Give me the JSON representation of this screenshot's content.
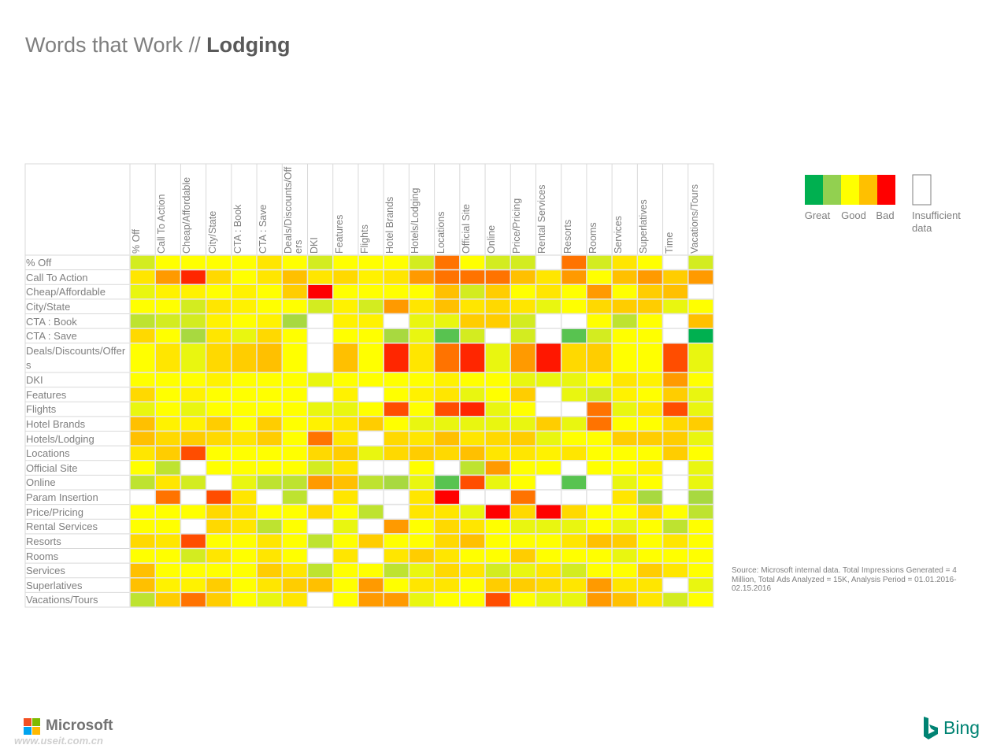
{
  "header": {
    "title": "Words that Work //",
    "title_emphasis": "Lodging"
  },
  "chart_data": {
    "type": "heatmap",
    "columns": [
      "% Off",
      "Call To Action",
      "Cheap/Affordable",
      "City/State",
      "CTA : Book",
      "CTA : Save",
      "Deals/Discounts/Offers",
      "DKI",
      "Features",
      "Flights",
      "Hotel Brands",
      "Hotels/Lodging",
      "Locations",
      "Official Site",
      "Online",
      "Price/Pricing",
      "Rental Services",
      "Resorts",
      "Rooms",
      "Services",
      "Superlatives",
      "Time",
      "Vacations/Tours"
    ],
    "rows": [
      "% Off",
      "Call To Action",
      "Cheap/Affordable",
      "City/State",
      "CTA : Book",
      "CTA : Save",
      "Deals/Discounts/Offers",
      "DKI",
      "Features",
      "Flights",
      "Hotel Brands",
      "Hotels/Lodging",
      "Locations",
      "Official Site",
      "Online",
      "Param Insertion",
      "Price/Pricing",
      "Rental Services",
      "Resorts",
      "Rooms",
      "Services",
      "Superlatives",
      "Vacations/Tours"
    ],
    "values": [
      [
        4,
        5,
        5,
        5,
        5,
        6,
        5,
        4,
        5,
        5,
        5,
        4,
        8.5,
        5,
        4,
        4,
        null,
        8.5,
        4,
        6,
        5,
        null,
        4
      ],
      [
        6,
        8,
        9.5,
        6.5,
        5,
        6,
        7.5,
        6,
        6.5,
        5.5,
        6,
        8,
        8.5,
        8.5,
        8.5,
        7.5,
        6,
        8,
        5,
        7.5,
        8,
        7,
        8
      ],
      [
        4.5,
        5.5,
        5.5,
        5,
        5.5,
        5,
        7,
        10,
        5,
        5,
        5,
        5,
        7.5,
        4,
        7,
        5,
        6,
        5,
        8,
        5,
        7,
        7.5,
        null
      ],
      [
        5,
        5,
        4,
        6,
        5.5,
        5,
        5,
        4,
        5.5,
        4,
        8,
        6,
        7.5,
        6,
        6.5,
        6,
        4.5,
        5,
        6.5,
        7,
        7,
        4.5,
        5
      ],
      [
        3.5,
        4,
        4,
        5.5,
        5,
        5.5,
        3,
        null,
        5.5,
        5.5,
        null,
        4.5,
        4.5,
        7,
        7,
        4,
        null,
        null,
        5,
        3.5,
        5,
        null,
        7.5
      ],
      [
        6.5,
        5,
        3,
        6,
        4.5,
        6.5,
        5,
        null,
        5,
        5,
        3,
        4.5,
        1.5,
        4,
        null,
        4,
        null,
        1.5,
        4,
        5,
        5,
        null,
        0
      ],
      [
        5,
        6,
        4.5,
        6.5,
        7,
        7.5,
        5,
        null,
        7.5,
        5,
        9.5,
        6,
        8.5,
        9.5,
        4.5,
        8,
        9.7,
        6.5,
        7,
        5,
        5,
        9,
        4.5
      ],
      [
        5,
        5,
        5,
        5.5,
        5,
        5,
        5,
        4.5,
        5,
        5,
        5,
        5,
        5.5,
        5,
        5,
        4.5,
        4.5,
        4.5,
        5,
        6,
        5.5,
        8,
        5
      ],
      [
        6.5,
        5,
        5.5,
        5,
        5,
        5,
        5,
        null,
        5.5,
        null,
        5,
        5.5,
        6,
        4.5,
        5,
        7,
        null,
        4.5,
        4,
        5.5,
        5,
        7,
        4.5
      ],
      [
        4.5,
        5,
        4.5,
        5,
        5,
        5,
        5,
        4.5,
        4.5,
        5,
        9,
        5,
        9,
        9.5,
        4.5,
        5,
        null,
        null,
        8.5,
        4.5,
        6,
        9,
        4.5
      ],
      [
        7.5,
        5.5,
        5.5,
        7,
        5,
        7,
        5,
        5.5,
        6,
        7,
        5,
        4.5,
        4.5,
        4.5,
        4.5,
        4.5,
        7,
        4.5,
        8.5,
        5,
        5,
        6.5,
        7
      ],
      [
        7.5,
        6.5,
        7,
        6.5,
        6,
        7,
        5,
        8.5,
        6,
        null,
        6.5,
        6,
        7.5,
        6,
        6.5,
        7,
        4.5,
        5,
        5,
        7,
        7,
        7,
        4.5
      ],
      [
        6,
        7,
        9,
        5,
        5,
        5,
        5,
        6.5,
        7,
        4.5,
        6.5,
        7,
        6.5,
        7.5,
        6,
        6,
        5.5,
        6,
        5,
        5,
        5,
        7,
        5
      ],
      [
        5,
        3.5,
        null,
        5,
        5,
        5,
        5,
        4,
        6,
        null,
        null,
        5,
        null,
        3.5,
        8,
        5,
        5,
        null,
        5,
        5,
        5.5,
        null,
        4.5
      ],
      [
        3.5,
        6,
        4,
        null,
        4.5,
        3.5,
        3.5,
        8,
        7.5,
        3.5,
        3,
        4.5,
        1.5,
        9,
        4.5,
        5,
        null,
        1.5,
        null,
        4.5,
        5,
        null,
        4.5
      ],
      [
        null,
        8.5,
        null,
        9,
        6,
        null,
        3.5,
        null,
        6,
        null,
        null,
        6,
        10,
        null,
        null,
        8.5,
        null,
        null,
        null,
        6,
        3,
        null,
        3
      ],
      [
        5,
        5,
        5,
        6.5,
        6,
        5,
        5,
        6.5,
        5,
        3.5,
        null,
        6,
        6,
        4.5,
        10,
        6.5,
        10,
        6.5,
        5,
        5,
        6.5,
        5,
        3.5
      ],
      [
        5,
        5,
        null,
        6.5,
        6,
        3.5,
        5,
        null,
        4.5,
        null,
        8,
        5,
        6.5,
        6,
        5,
        4.5,
        4.5,
        4.5,
        5,
        4.5,
        5,
        3.5,
        5
      ],
      [
        6.5,
        6,
        9,
        5,
        5,
        6,
        5,
        3.5,
        5,
        7,
        5,
        5,
        6.5,
        7.5,
        5,
        5,
        5,
        6,
        7.5,
        7,
        5,
        6,
        5
      ],
      [
        5,
        5,
        4,
        6,
        5,
        6,
        5,
        null,
        6,
        null,
        6,
        7,
        6,
        5,
        5,
        7,
        5,
        5,
        5,
        4.5,
        5,
        5,
        5
      ],
      [
        7.5,
        5,
        5,
        5,
        5,
        7,
        6,
        3.5,
        5,
        5,
        3.5,
        4.5,
        6.5,
        6,
        4,
        4.5,
        6,
        4,
        5,
        5,
        7,
        6,
        5
      ],
      [
        7.5,
        5.5,
        5.5,
        7,
        5,
        6,
        7,
        7.5,
        5,
        8,
        5,
        6,
        6,
        5,
        7,
        7,
        6.5,
        6,
        8,
        6,
        6,
        null,
        4.5
      ],
      [
        3.5,
        7,
        8.5,
        7,
        5,
        4.5,
        6,
        null,
        5,
        8,
        8,
        4.5,
        5,
        5,
        9,
        5,
        4.5,
        4.5,
        8,
        7.5,
        6,
        4,
        5
      ]
    ],
    "color_scale": [
      {
        "value": 0,
        "color": "#00b050"
      },
      {
        "value": 2.5,
        "color": "#92d050"
      },
      {
        "value": 5,
        "color": "#ffff00"
      },
      {
        "value": 7.5,
        "color": "#ffc000"
      },
      {
        "value": 10,
        "color": "#ff0000"
      }
    ],
    "legend": {
      "labels": [
        "Great",
        "Good",
        "Bad"
      ],
      "insufficient": "Insufficient data"
    },
    "source": "Source: Microsoft internal data. Total Impressions Generated = 4 Million, Total Ads Analyzed = 15K, Analysis Period = 01.01.2016- 02.15.2016"
  },
  "footer": {
    "left_logo": "Microsoft",
    "watermark": "www.useit.com.cn",
    "right_logo": "Bing"
  }
}
